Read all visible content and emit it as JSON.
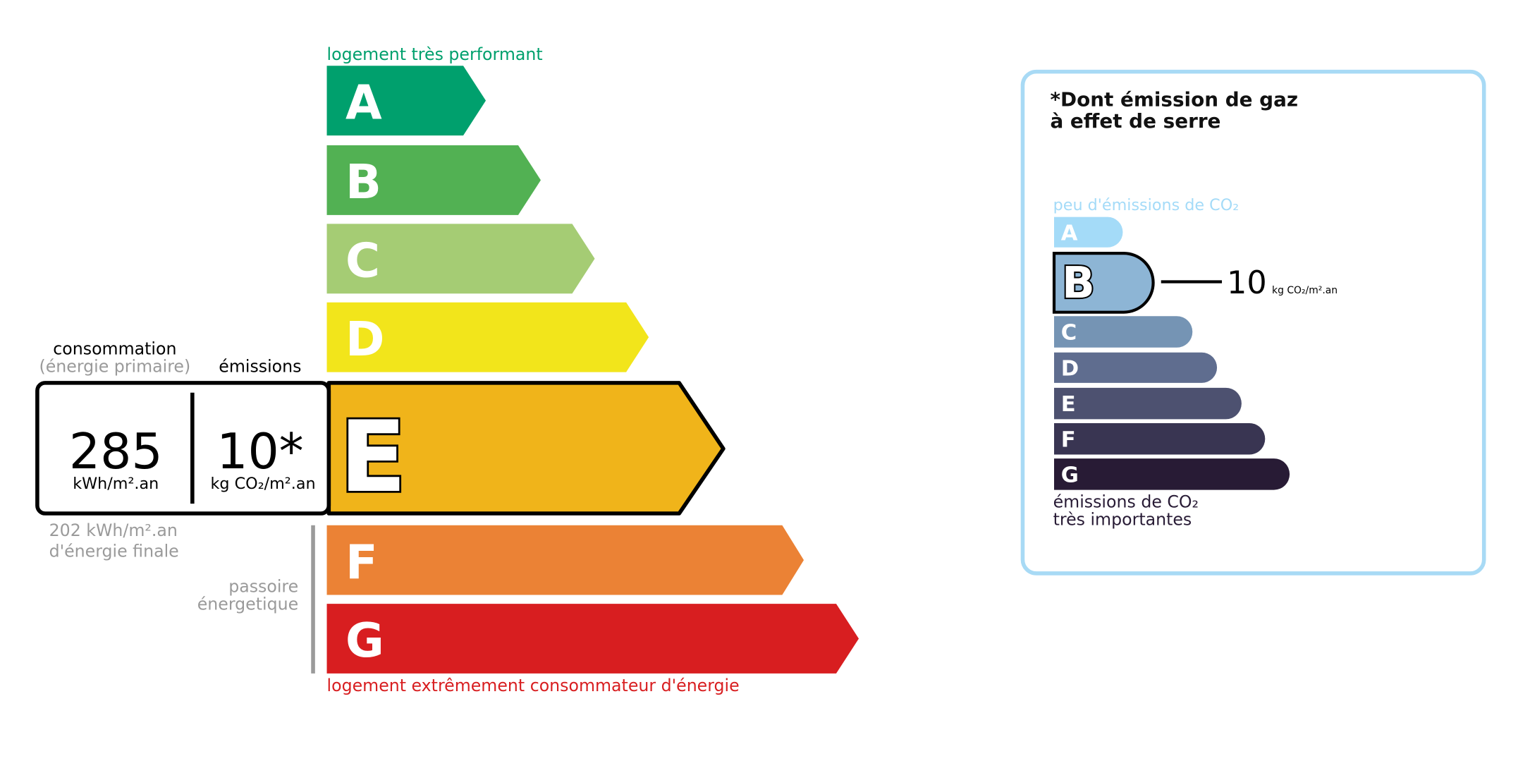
{
  "energy": {
    "top_label": "logement très performant",
    "bottom_label": "logement extrêmement consommateur d'énergie",
    "classes": [
      {
        "letter": "A",
        "color": "#00a06d"
      },
      {
        "letter": "B",
        "color": "#52b153"
      },
      {
        "letter": "C",
        "color": "#a5cc74"
      },
      {
        "letter": "D",
        "color": "#f2e51b"
      },
      {
        "letter": "E",
        "color": "#f0b41a"
      },
      {
        "letter": "F",
        "color": "#eb8235"
      },
      {
        "letter": "G",
        "color": "#d81e20"
      }
    ],
    "current_class": "E",
    "consumption_title": "consommation",
    "consumption_subtitle": "(énergie primaire)",
    "emissions_title": "émissions",
    "consumption_value": "285",
    "consumption_unit": "kWh/m².an",
    "emissions_value": "10*",
    "emissions_unit": "kg CO₂/m².an",
    "final_energy_value": "202 kWh/m².an",
    "final_energy_label": "d'énergie finale",
    "passoire_line1": "passoire",
    "passoire_line2": "énergetique"
  },
  "ges": {
    "title_line1": "*Dont émission de gaz",
    "title_line2": "à effet de serre",
    "top_label": "peu d'émissions de CO₂",
    "bottom_line1": "émissions de CO₂",
    "bottom_line2": "très importantes",
    "classes": [
      {
        "letter": "A",
        "color": "#a4dbf8"
      },
      {
        "letter": "B",
        "color": "#8db5d5"
      },
      {
        "letter": "C",
        "color": "#7594b4"
      },
      {
        "letter": "D",
        "color": "#5f6d8f"
      },
      {
        "letter": "E",
        "color": "#4d5170"
      },
      {
        "letter": "F",
        "color": "#393552"
      },
      {
        "letter": "G",
        "color": "#281b35"
      }
    ],
    "current_class": "B",
    "value": "10",
    "unit": "kg CO₂/m².an",
    "border_color": "#a8daf5"
  }
}
